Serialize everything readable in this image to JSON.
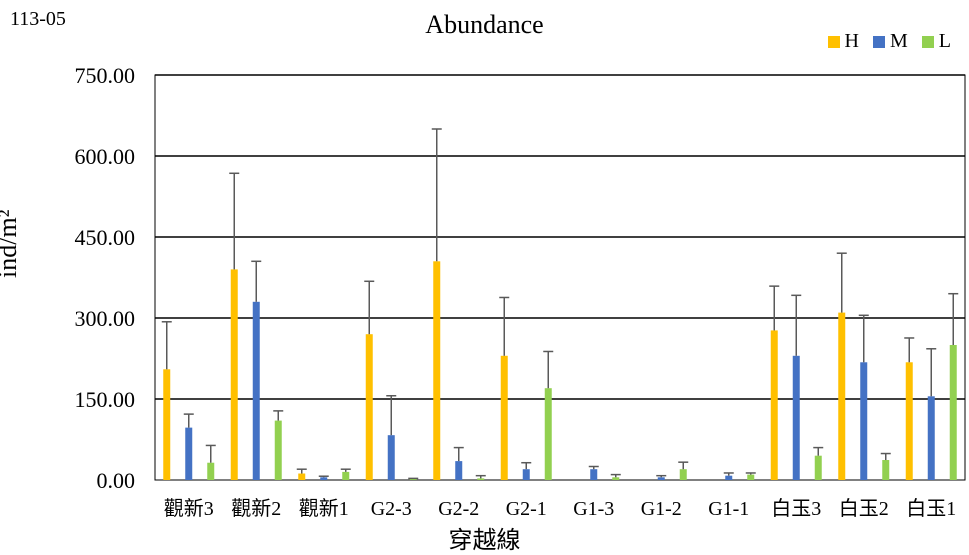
{
  "corner_label": "113-05",
  "chart_data": {
    "type": "bar",
    "title": "Abundance",
    "xlabel": "穿越線",
    "ylabel": "ind/m²",
    "ylim": [
      0,
      750
    ],
    "yticks": [
      "0.00",
      "150.00",
      "300.00",
      "450.00",
      "600.00",
      "750.00"
    ],
    "grid": true,
    "legend_position": "top-right",
    "categories": [
      "觀新3",
      "觀新2",
      "觀新1",
      "G2-3",
      "G2-2",
      "G2-1",
      "G1-3",
      "G1-2",
      "G1-1",
      "白玉3",
      "白玉2",
      "白玉1"
    ],
    "series": [
      {
        "name": "H",
        "color": "#FFC000",
        "values": [
          205,
          390,
          12,
          270,
          405,
          230,
          0,
          0,
          0,
          277,
          310,
          218
        ],
        "errors": [
          88,
          178,
          8,
          98,
          245,
          108,
          0,
          0,
          0,
          82,
          110,
          45
        ]
      },
      {
        "name": "M",
        "color": "#4472C4",
        "values": [
          97,
          330,
          5,
          83,
          35,
          20,
          20,
          5,
          8,
          230,
          218,
          155
        ],
        "errors": [
          25,
          75,
          2,
          73,
          25,
          12,
          5,
          3,
          5,
          112,
          87,
          88
        ]
      },
      {
        "name": "L",
        "color": "#92D050",
        "values": [
          32,
          110,
          15,
          2,
          3,
          170,
          5,
          20,
          10,
          45,
          37,
          250
        ],
        "errors": [
          32,
          18,
          5,
          1,
          5,
          68,
          5,
          13,
          3,
          15,
          12,
          95
        ]
      }
    ]
  }
}
